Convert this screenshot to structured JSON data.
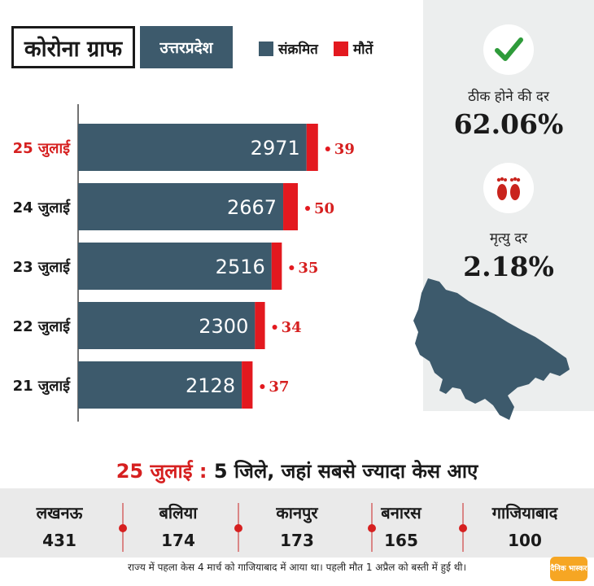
{
  "header": {
    "title": "कोरोना ग्राफ",
    "region": "उत्तरप्रदेश"
  },
  "chart_data": {
    "type": "bar",
    "orientation": "horizontal",
    "stacked": true,
    "categories": [
      "25 जुलाई",
      "24 जुलाई",
      "23 जुलाई",
      "22 जुलाई",
      "21 जुलाई"
    ],
    "series": [
      {
        "name": "संक्रमित",
        "values": [
          2971,
          2667,
          2516,
          2300,
          2128
        ],
        "color": "#3d5a6c"
      },
      {
        "name": "मौतें",
        "values": [
          39,
          50,
          35,
          34,
          37
        ],
        "color": "#e3191f"
      }
    ],
    "highlight_category": "25 जुलाई",
    "highlight_color": "#d62020",
    "legend_position": "top",
    "grid": false
  },
  "stats": {
    "recovery_label": "ठीक होने की दर",
    "recovery_value": "62.06%",
    "recovery_icon": "check-icon",
    "death_label": "मृत्यु दर",
    "death_value": "2.18%",
    "death_icon": "footprints-icon"
  },
  "map_icon": "uttar-pradesh-map-icon",
  "districts_heading": {
    "date": "25 जुलाई",
    "separator": ":",
    "text": "5 जिले, जहां सबसे ज्यादा केस आए"
  },
  "districts": [
    {
      "name": "लखनऊ",
      "value": "431"
    },
    {
      "name": "बलिया",
      "value": "174"
    },
    {
      "name": "कानपुर",
      "value": "173"
    },
    {
      "name": "बनारस",
      "value": "165"
    },
    {
      "name": "गाजियाबाद",
      "value": "100"
    }
  ],
  "footnote": "राज्य में पहला केस 4 मार्च को गाजियाबाद में आया था। पहली मौत 1 अप्रैल को बस्ती में हुई थी।",
  "brand": "दैनिक भास्कर"
}
